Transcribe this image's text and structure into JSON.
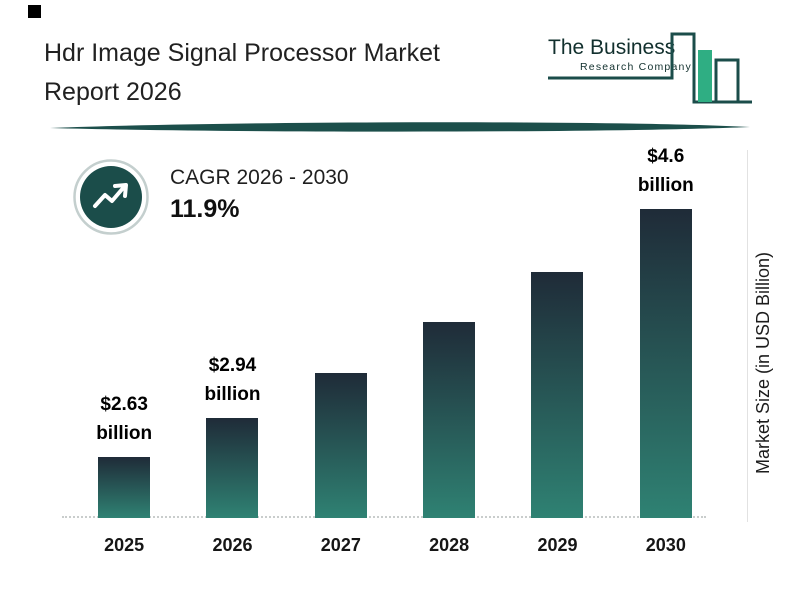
{
  "header": {
    "title_line1": "Hdr Image Signal Processor Market",
    "title_line2": "Report 2026",
    "logo": {
      "name": "The Business",
      "subtitle": "Research Company"
    }
  },
  "cagr_badge": {
    "icon": "trend-up-arrow-icon",
    "label": "CAGR 2026 - 2030",
    "value": "11.9%"
  },
  "chart_data": {
    "type": "bar",
    "title": "Hdr Image Signal Processor Market Report 2026",
    "categories": [
      "2025",
      "2026",
      "2027",
      "2028",
      "2029",
      "2030"
    ],
    "values": [
      2.63,
      2.94,
      3.3,
      3.7,
      4.1,
      4.6
    ],
    "bar_labels": [
      {
        "amount": "$2.63",
        "unit": "billion"
      },
      {
        "amount": "$2.94",
        "unit": "billion"
      },
      null,
      null,
      null,
      {
        "amount": "$4.6",
        "unit": "billion"
      }
    ],
    "ylabel": "Market Size (in USD Billion)",
    "xlabel": "",
    "ylim": [
      2.15,
      5.0
    ],
    "grid": false,
    "legend": false,
    "baseline_style": "dotted",
    "colors": {
      "bar_top": "#1f2b38",
      "bar_bottom": "#2f8273"
    }
  },
  "colors": {
    "accent_teal": "#1b4d4a",
    "logo_green": "#2fae83",
    "divider": "#1c4f4b",
    "text": "#1f1f1f"
  }
}
